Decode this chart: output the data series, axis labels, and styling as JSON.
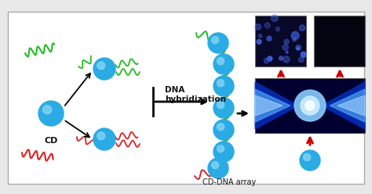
{
  "bg_color": "#e8e8e8",
  "panel_bg": "#ffffff",
  "cd_color": "#2aabe4",
  "cd_highlight": "#90d8f8",
  "green_dna_color": "#22bb22",
  "red_dna_color": "#dd2222",
  "arrow_color": "#111111",
  "red_arrow_color": "#cc0000",
  "text_color": "#111111",
  "panel_border": "#aaaaaa",
  "cd_label": "CD",
  "dna_label": "DNA\nhybridization",
  "array_label": "CD-DNA array",
  "dark_panel1_color": "#080828",
  "dark_panel2_color": "#040410",
  "vial_bg": "#000044"
}
